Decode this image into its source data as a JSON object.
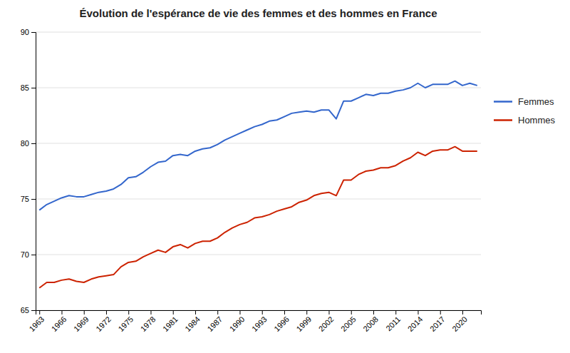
{
  "chart_data": {
    "type": "line",
    "title": "Évolution de l'espérance de vie des femmes et des hommes en France",
    "x": [
      1963,
      1964,
      1965,
      1966,
      1967,
      1968,
      1969,
      1970,
      1971,
      1972,
      1973,
      1974,
      1975,
      1976,
      1977,
      1978,
      1979,
      1980,
      1981,
      1982,
      1983,
      1984,
      1985,
      1986,
      1987,
      1988,
      1989,
      1990,
      1991,
      1992,
      1993,
      1994,
      1995,
      1996,
      1997,
      1998,
      1999,
      2000,
      2001,
      2002,
      2003,
      2004,
      2005,
      2006,
      2007,
      2008,
      2009,
      2010,
      2011,
      2012,
      2013,
      2014,
      2015,
      2016,
      2017,
      2018,
      2019,
      2020,
      2021,
      2022
    ],
    "series": [
      {
        "name": "Femmes",
        "color": "#3366cc",
        "values": [
          74.0,
          74.5,
          74.8,
          75.1,
          75.3,
          75.2,
          75.2,
          75.4,
          75.6,
          75.7,
          75.9,
          76.3,
          76.9,
          77.0,
          77.4,
          77.9,
          78.3,
          78.4,
          78.9,
          79.0,
          78.9,
          79.3,
          79.5,
          79.6,
          79.9,
          80.3,
          80.6,
          80.9,
          81.2,
          81.5,
          81.7,
          82.0,
          82.1,
          82.4,
          82.7,
          82.8,
          82.9,
          82.8,
          83.0,
          83.0,
          82.2,
          83.8,
          83.8,
          84.1,
          84.4,
          84.3,
          84.5,
          84.5,
          84.7,
          84.8,
          85.0,
          85.4,
          85.0,
          85.3,
          85.3,
          85.3,
          85.6,
          85.2,
          85.4,
          85.2
        ]
      },
      {
        "name": "Hommes",
        "color": "#cc2200",
        "values": [
          67.0,
          67.5,
          67.5,
          67.7,
          67.8,
          67.6,
          67.5,
          67.8,
          68.0,
          68.1,
          68.2,
          68.9,
          69.3,
          69.4,
          69.8,
          70.1,
          70.4,
          70.2,
          70.7,
          70.9,
          70.6,
          71.0,
          71.2,
          71.2,
          71.5,
          72.0,
          72.4,
          72.7,
          72.9,
          73.3,
          73.4,
          73.6,
          73.9,
          74.1,
          74.3,
          74.7,
          74.9,
          75.3,
          75.5,
          75.6,
          75.3,
          76.7,
          76.7,
          77.2,
          77.5,
          77.6,
          77.8,
          77.8,
          78.0,
          78.4,
          78.7,
          79.2,
          78.9,
          79.3,
          79.4,
          79.4,
          79.7,
          79.3,
          79.3,
          79.3
        ]
      }
    ],
    "xlim": [
      1962.5,
      2022.5
    ],
    "xticks": [
      1963,
      1966,
      1969,
      1972,
      1975,
      1978,
      1981,
      1984,
      1987,
      1990,
      1993,
      1996,
      1999,
      2002,
      2005,
      2008,
      2011,
      2014,
      2017,
      2020
    ],
    "ylim": [
      65,
      90
    ],
    "yticks": [
      65,
      70,
      75,
      80,
      85,
      90
    ],
    "grid": true,
    "legend": "right"
  }
}
